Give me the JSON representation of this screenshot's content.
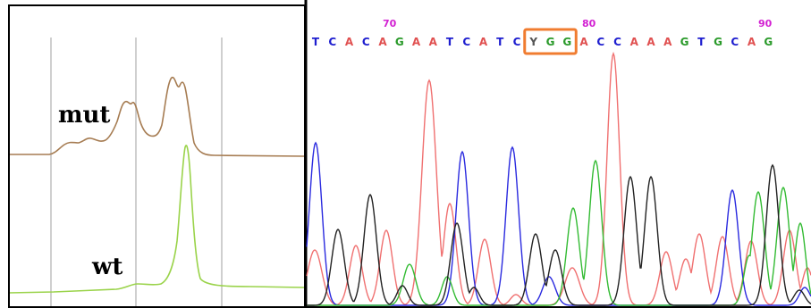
{
  "left_panel": {
    "mut_label": "mut",
    "wt_label": "wt",
    "mut_color": "#a67c52",
    "wt_color": "#9ad34a"
  },
  "right_panel": {
    "position_numbers": [
      "70",
      "80",
      "90"
    ],
    "sequence": [
      "T",
      "C",
      "A",
      "C",
      "A",
      "G",
      "A",
      "A",
      "T",
      "C",
      "A",
      "T",
      "C",
      "Y",
      "G",
      "G",
      "A",
      "C",
      "C",
      "A",
      "A",
      "A",
      "G",
      "T",
      "G",
      "C",
      "A",
      "G"
    ],
    "highlight_start_index": 13,
    "highlight_end_index": 15,
    "highlight_color": "#f07c30",
    "base_colors": {
      "A": "#e05050",
      "C": "#1e1ecf",
      "G": "#2a9a2a",
      "T": "#1e1ecf",
      "Y": "#555555"
    },
    "trace_colors": {
      "A": "#f07070",
      "C": "#2a2adf",
      "G": "#33bb33",
      "T": "#222222"
    }
  }
}
